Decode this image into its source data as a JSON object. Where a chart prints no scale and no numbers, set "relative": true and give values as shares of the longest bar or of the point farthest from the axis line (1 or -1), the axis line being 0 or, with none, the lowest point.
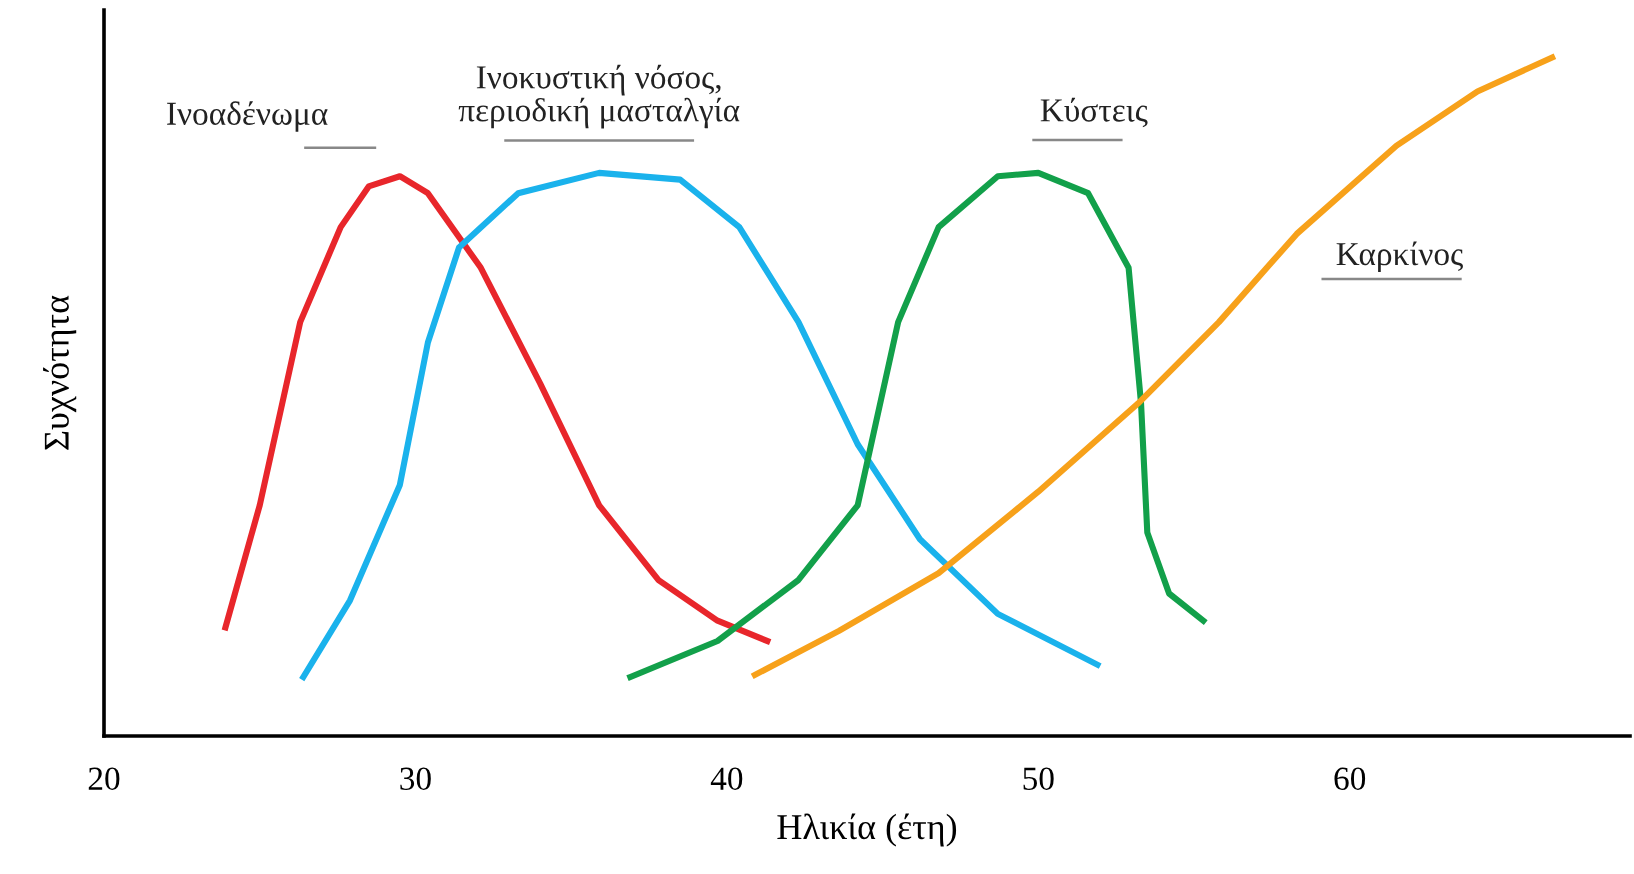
{
  "chart_data": {
    "type": "line",
    "relative": true,
    "xlabel": "Ηλικία (έτη)",
    "ylabel": "Συχνότητα",
    "xlim": [
      20,
      69
    ],
    "xticks": [
      20,
      30,
      40,
      50,
      60
    ],
    "grid": false,
    "legend": false,
    "marker": "none",
    "line_style": "solid",
    "tick_labels": "x",
    "series": [
      {
        "name": "Ινοαδένωμα",
        "color": "#e8262b",
        "x": [
          23.9,
          25.0,
          26.3,
          27.6,
          28.5,
          29.5,
          30.4,
          32.1,
          34.0,
          35.9,
          37.8,
          39.7,
          41.3
        ],
        "values": [
          0.16,
          0.34,
          0.61,
          0.75,
          0.81,
          0.825,
          0.8,
          0.69,
          0.52,
          0.34,
          0.23,
          0.17,
          0.14
        ]
      },
      {
        "name": "Ινοκυστική νόσος,\nπεριοδική μασταλγία",
        "color": "#1ab2ec",
        "x": [
          26.4,
          27.9,
          29.5,
          30.4,
          31.4,
          33.3,
          35.9,
          38.5,
          40.4,
          42.3,
          44.2,
          46.2,
          48.7,
          51.9
        ],
        "values": [
          0.087,
          0.2,
          0.37,
          0.58,
          0.72,
          0.8,
          0.83,
          0.82,
          0.75,
          0.61,
          0.43,
          0.29,
          0.18,
          0.105
        ]
      },
      {
        "name": "Κύστεις",
        "color": "#12a04a",
        "x": [
          36.9,
          39.7,
          42.3,
          44.2,
          45.5,
          46.8,
          48.7,
          50.0,
          51.6,
          52.9,
          53.3,
          53.5,
          54.2,
          55.3
        ],
        "values": [
          0.087,
          0.14,
          0.23,
          0.34,
          0.61,
          0.75,
          0.825,
          0.83,
          0.8,
          0.69,
          0.49,
          0.3,
          0.21,
          0.17
        ]
      },
      {
        "name": "Καρκίνος",
        "color": "#f7a11a",
        "x": [
          40.9,
          43.6,
          46.8,
          50.0,
          53.2,
          55.8,
          58.3,
          61.5,
          64.1,
          66.5
        ],
        "values": [
          0.09,
          0.155,
          0.24,
          0.36,
          0.49,
          0.61,
          0.74,
          0.87,
          0.95,
          1.0
        ]
      }
    ]
  }
}
